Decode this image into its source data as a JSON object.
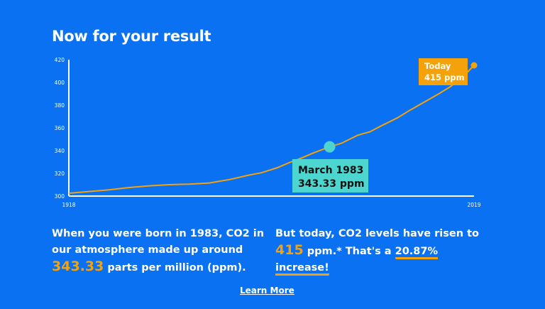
{
  "page": {
    "title": "Now for your result",
    "callout_born": {
      "line1": "March 1983",
      "line2": "343.33 ppm"
    },
    "callout_today": {
      "line1": "Today",
      "line2": "415 ppm"
    },
    "left_paragraph": {
      "text1": "When you were born in 1983, CO2 in our atmosphere made up around ",
      "value": "343.33",
      "text2": " parts per million (ppm)."
    },
    "right_paragraph": {
      "text1": "But today, CO2 levels have risen to ",
      "value": "415",
      "text2": " ppm.* That's a ",
      "highlight": "20.87% increase!"
    },
    "learn_more": "Learn More"
  },
  "colors": {
    "background": "#0a71f2",
    "line": "#f5a20a",
    "born_marker": "#4dd6cf",
    "today_marker": "#f5a20a"
  },
  "chart_data": {
    "type": "line",
    "title": "",
    "xlabel": "",
    "ylabel": "",
    "xlim": [
      1918,
      2019
    ],
    "ylim": [
      300,
      420
    ],
    "yticks": [
      300,
      320,
      340,
      360,
      380,
      400,
      420
    ],
    "xtick_labels": [
      "1918",
      "2019"
    ],
    "grid": false,
    "series": [
      {
        "x": [
          1918,
          1923,
          1928,
          1933,
          1938,
          1943,
          1948,
          1953,
          1958,
          1963,
          1966,
          1970,
          1973,
          1976,
          1979,
          1983,
          1986,
          1990,
          1993,
          1996,
          2000,
          2003,
          2006,
          2010,
          2013,
          2016,
          2019
        ],
        "y": [
          302.5,
          304,
          305.5,
          307.5,
          309,
          310,
          310.5,
          311.5,
          314.5,
          318.5,
          320.5,
          325,
          329.5,
          333.5,
          338,
          343.33,
          346.5,
          353.5,
          356.5,
          362,
          369,
          375.5,
          381.5,
          389.5,
          396,
          404,
          415
        ]
      }
    ],
    "annotations": [
      {
        "label": "March 1983 343.33 ppm",
        "x": 1983,
        "y": 343.33
      },
      {
        "label": "Today 415 ppm",
        "x": 2019,
        "y": 415
      }
    ]
  }
}
